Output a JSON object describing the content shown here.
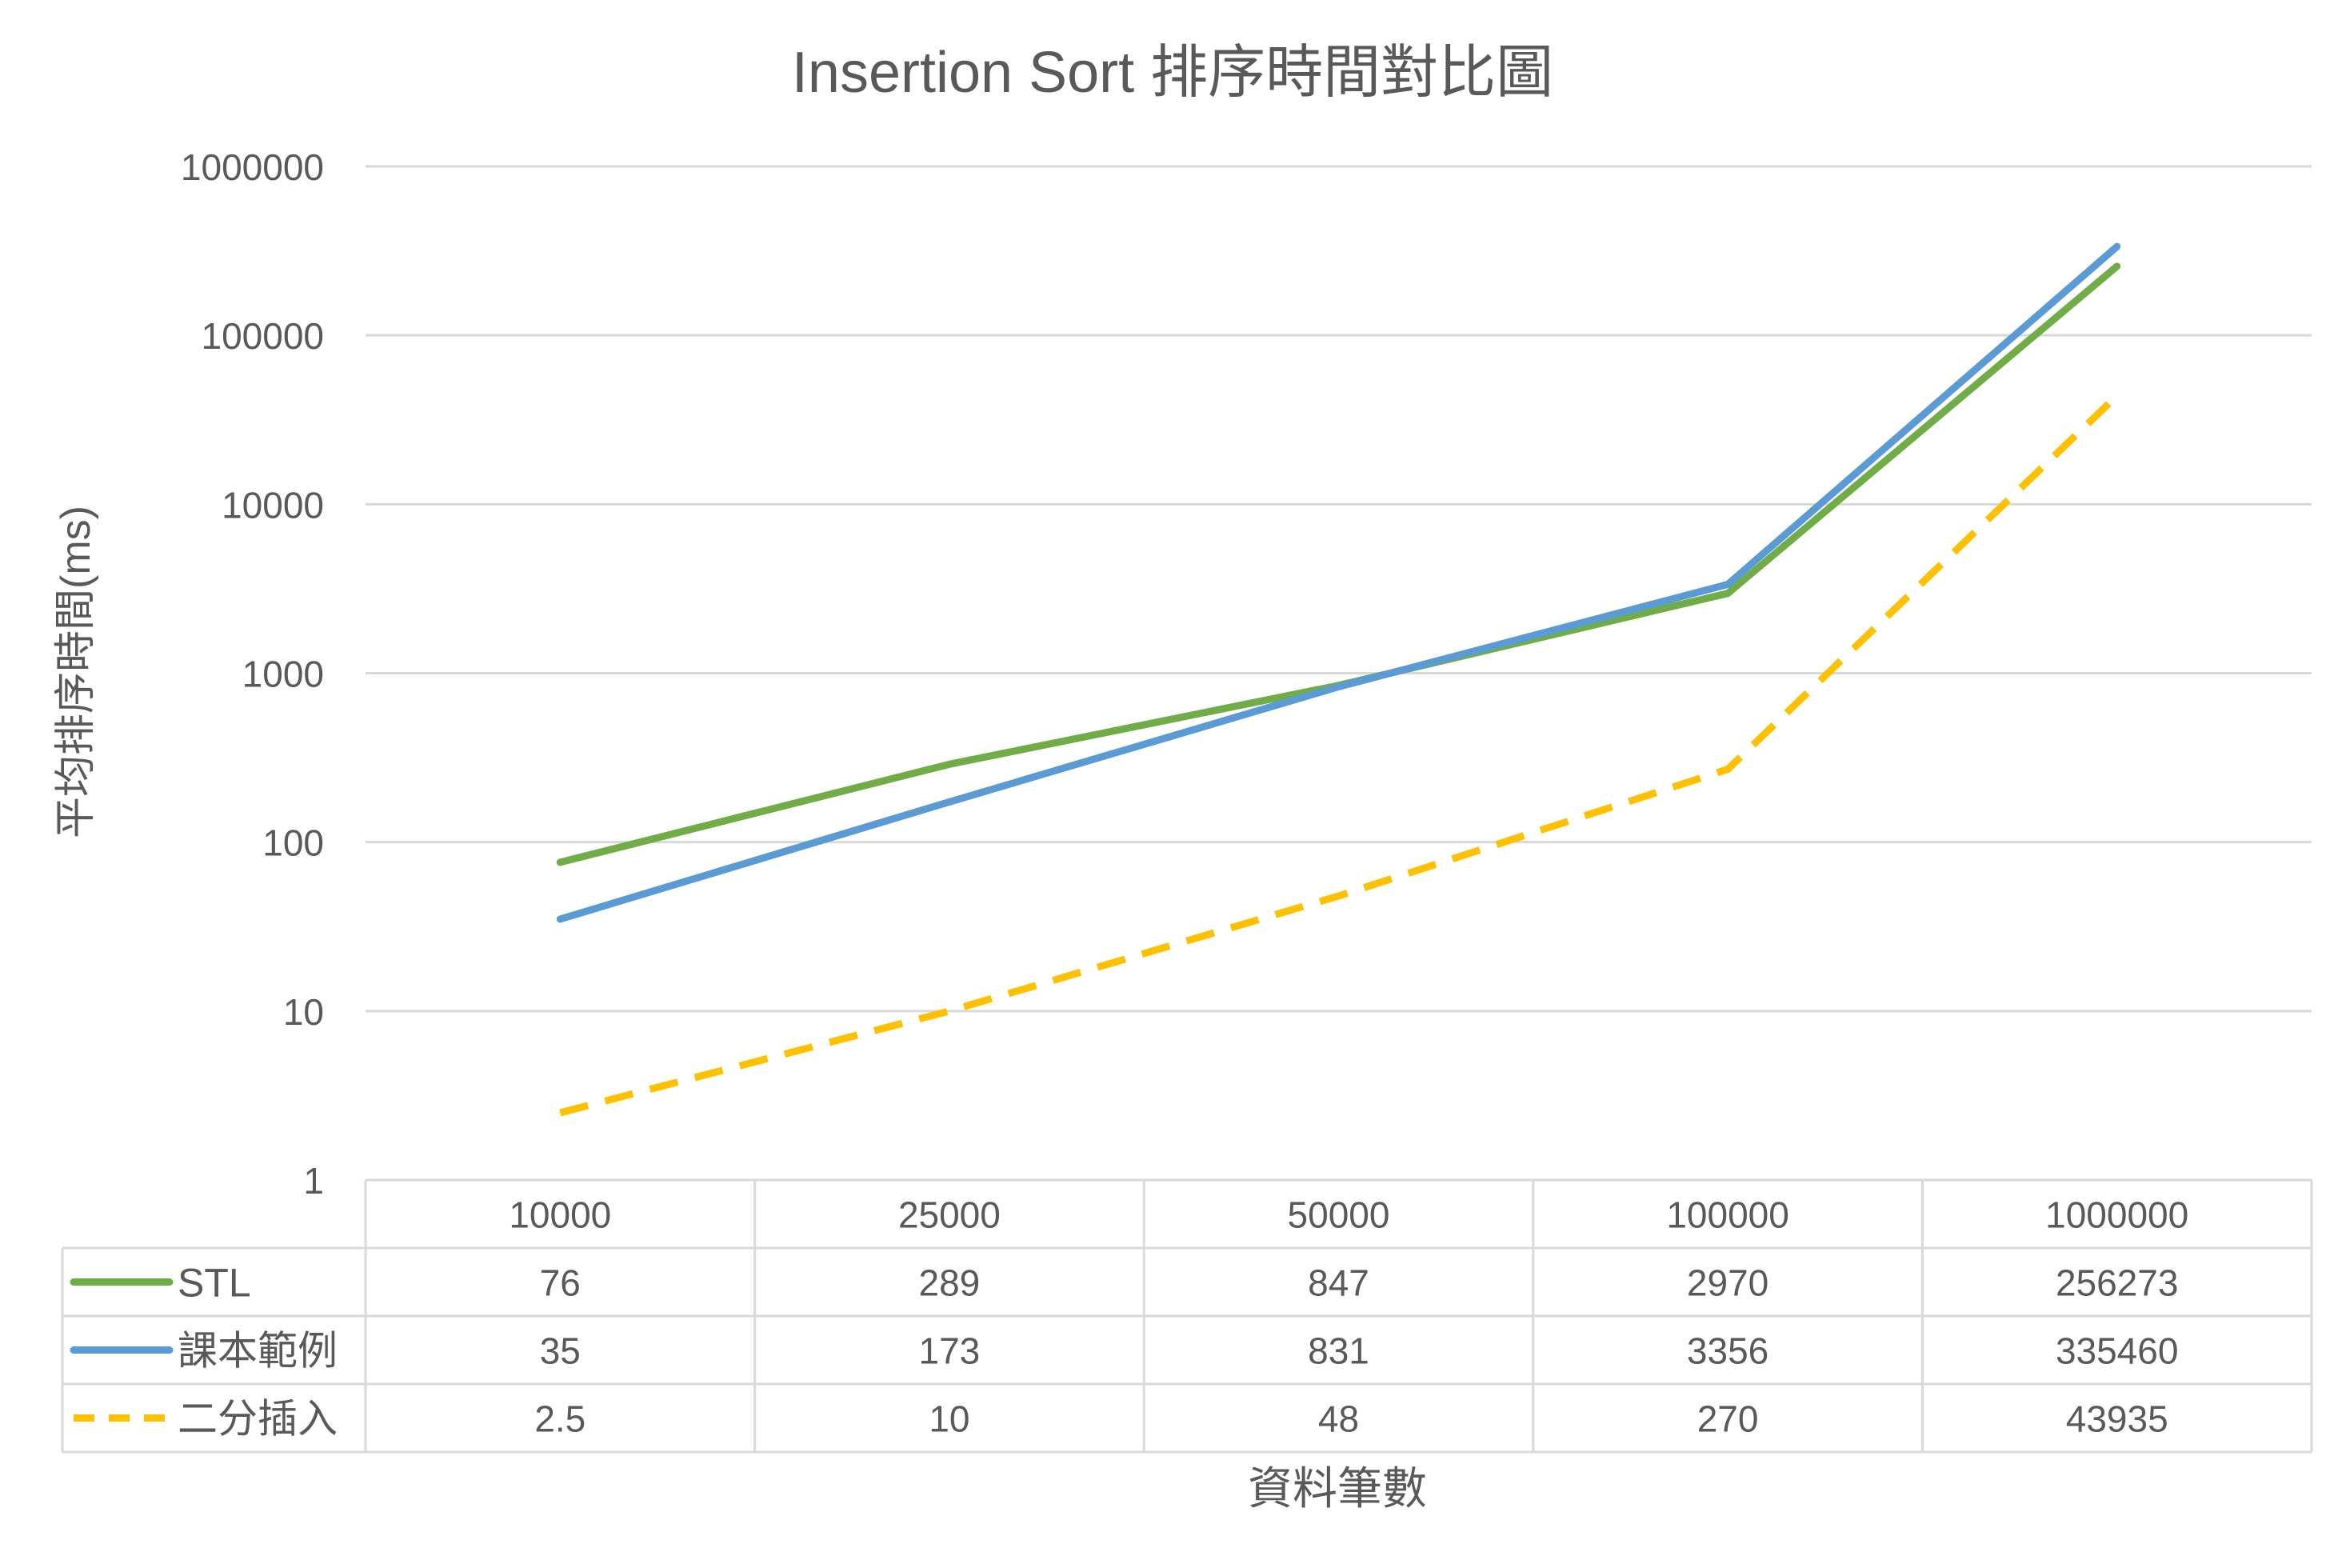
{
  "chart_data": {
    "type": "line",
    "title": "Insertion Sort 排序時間對比圖",
    "xlabel": "資料筆數",
    "ylabel": "平均排序時間(ms)",
    "y_scale": "log",
    "ylim": [
      1,
      1000000
    ],
    "y_ticks": [
      "1",
      "10",
      "100",
      "1000",
      "10000",
      "100000",
      "1000000"
    ],
    "y_tick_values": [
      1,
      10,
      100,
      1000,
      10000,
      100000,
      1000000
    ],
    "grid": true,
    "legend": "data-table-left",
    "categories": [
      "10000",
      "25000",
      "50000",
      "100000",
      "1000000"
    ],
    "series": [
      {
        "name": "STL",
        "color": "#70AD47",
        "dash": "solid",
        "values": [
          76,
          289,
          847,
          2970,
          256273
        ],
        "labels": [
          "76",
          "289",
          "847",
          "2970",
          "256273"
        ]
      },
      {
        "name": "課本範例",
        "color": "#5B9BD5",
        "dash": "solid",
        "values": [
          35,
          173,
          831,
          3356,
          335460
        ],
        "labels": [
          "35",
          "173",
          "831",
          "3356",
          "335460"
        ]
      },
      {
        "name": "二分插入",
        "color": "#FFC000",
        "dash": "dashed",
        "values": [
          2.5,
          10,
          48,
          270,
          43935
        ],
        "labels": [
          "2.5",
          "10",
          "48",
          "270",
          "43935"
        ]
      }
    ]
  }
}
